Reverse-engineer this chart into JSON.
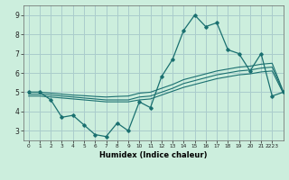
{
  "xlabel": "Humidex (Indice chaleur)",
  "background_color": "#cceedd",
  "grid_color": "#aacccc",
  "line_color": "#1a7070",
  "x_values": [
    0,
    1,
    2,
    3,
    4,
    5,
    6,
    7,
    8,
    9,
    10,
    11,
    12,
    13,
    14,
    15,
    16,
    17,
    18,
    19,
    20,
    21,
    22,
    23
  ],
  "line1": [
    5.0,
    5.0,
    4.6,
    3.7,
    3.8,
    3.3,
    2.8,
    2.7,
    3.4,
    3.0,
    4.5,
    4.2,
    5.8,
    6.7,
    8.2,
    9.0,
    8.4,
    8.6,
    7.2,
    7.0,
    6.1,
    7.0,
    4.8,
    5.0
  ],
  "line2": [
    4.9,
    4.9,
    4.85,
    4.8,
    4.75,
    4.7,
    4.65,
    4.6,
    4.6,
    4.6,
    4.75,
    4.8,
    5.0,
    5.2,
    5.45,
    5.6,
    5.75,
    5.9,
    6.0,
    6.1,
    6.15,
    6.25,
    6.3,
    5.0
  ],
  "line3": [
    5.0,
    5.0,
    4.95,
    4.9,
    4.85,
    4.82,
    4.78,
    4.75,
    4.78,
    4.8,
    4.95,
    5.0,
    5.2,
    5.4,
    5.65,
    5.8,
    5.95,
    6.1,
    6.2,
    6.3,
    6.35,
    6.45,
    6.5,
    5.05
  ],
  "line4": [
    4.8,
    4.8,
    4.75,
    4.7,
    4.65,
    4.6,
    4.55,
    4.5,
    4.5,
    4.5,
    4.6,
    4.65,
    4.85,
    5.05,
    5.25,
    5.4,
    5.55,
    5.7,
    5.8,
    5.9,
    5.95,
    6.05,
    6.1,
    4.95
  ],
  "ylim": [
    2.5,
    9.5
  ],
  "yticks": [
    3,
    4,
    5,
    6,
    7,
    8,
    9
  ],
  "xlim": [
    -0.5,
    23.0
  ],
  "xtick_positions": [
    0,
    1,
    2,
    3,
    4,
    5,
    6,
    7,
    8,
    9,
    10,
    11,
    12,
    13,
    14,
    15,
    16,
    17,
    18,
    19,
    20,
    21,
    22
  ],
  "xtick_labels": [
    "0",
    "1",
    "2",
    "3",
    "4",
    "5",
    "6",
    "7",
    "8",
    "9",
    "10",
    "11",
    "12",
    "13",
    "14",
    "15",
    "16",
    "17",
    "18",
    "19",
    "20",
    "21",
    "2223"
  ]
}
